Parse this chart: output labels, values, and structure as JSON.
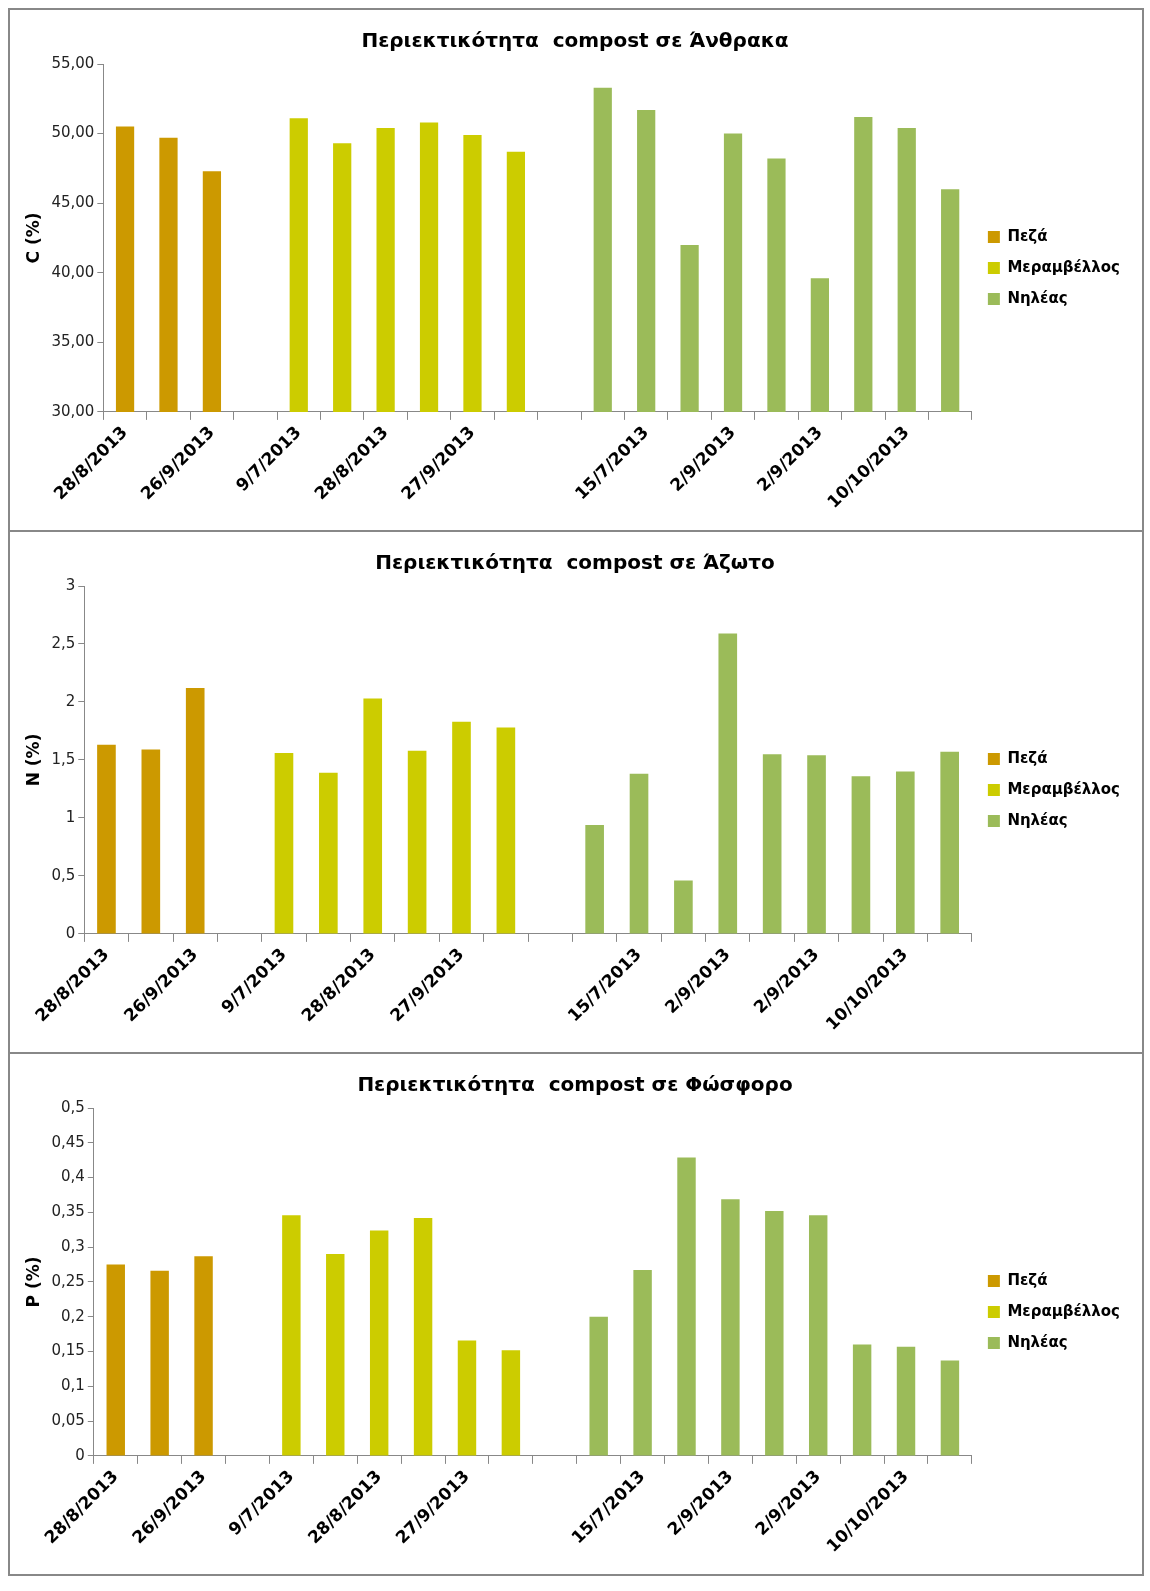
{
  "chart_data": [
    {
      "type": "bar",
      "title": "Περιεκτικότητα  compost σε Άνθρακα",
      "ylabel": "C (%)",
      "legend": "right",
      "grid": false,
      "categories": [
        "28/8/2013",
        null,
        "26/9/2013",
        null,
        "9/7/2013",
        null,
        "28/8/2013",
        null,
        "27/9/2013",
        null,
        null,
        null,
        "15/7/2013",
        null,
        "2/9/2013",
        null,
        "2/9/2013",
        null,
        "10/10/2013",
        null
      ],
      "ylim": [
        30,
        55
      ],
      "yticks": [
        {
          "value": 30,
          "label": "30,00"
        },
        {
          "value": 35,
          "label": "35,00"
        },
        {
          "value": 40,
          "label": "40,00"
        },
        {
          "value": 45,
          "label": "45,00"
        },
        {
          "value": 50,
          "label": "50,00"
        },
        {
          "value": 55,
          "label": "55,00"
        }
      ],
      "series": [
        {
          "name": "Πεζά",
          "color": "#cc9900",
          "values": [
            50.5,
            49.7,
            47.3,
            null,
            null,
            null,
            null,
            null,
            null,
            null,
            null,
            null,
            null,
            null,
            null,
            null,
            null,
            null,
            null,
            null
          ]
        },
        {
          "name": "Μεραμβέλλος",
          "color": "#cccc00",
          "values": [
            null,
            null,
            null,
            null,
            51.1,
            49.3,
            50.4,
            50.8,
            49.9,
            48.7,
            null,
            null,
            null,
            null,
            null,
            null,
            null,
            null,
            null,
            null
          ]
        },
        {
          "name": "Νηλέας",
          "color": "#9bbb59",
          "values": [
            null,
            null,
            null,
            null,
            null,
            null,
            null,
            null,
            null,
            null,
            null,
            53.3,
            51.7,
            42.0,
            50.0,
            48.2,
            39.6,
            51.2,
            50.4,
            46.0
          ]
        }
      ]
    },
    {
      "type": "bar",
      "title": "Περιεκτικότητα  compost σε Άζωτο",
      "ylabel": "N (%)",
      "legend": "right",
      "grid": false,
      "categories": [
        "28/8/2013",
        null,
        "26/9/2013",
        null,
        "9/7/2013",
        null,
        "28/8/2013",
        null,
        "27/9/2013",
        null,
        null,
        null,
        "15/7/2013",
        null,
        "2/9/2013",
        null,
        "2/9/2013",
        null,
        "10/10/2013",
        null
      ],
      "ylim": [
        0,
        3
      ],
      "yticks": [
        0,
        {
          "value": 0.5,
          "label": "0,5"
        },
        1,
        {
          "value": 1.5,
          "label": "1,5"
        },
        2,
        {
          "value": 2.5,
          "label": "2,5"
        },
        3
      ],
      "series": [
        {
          "name": "Πεζά",
          "color": "#cc9900",
          "values": [
            1.63,
            1.59,
            2.12,
            null,
            null,
            null,
            null,
            null,
            null,
            null,
            null,
            null,
            null,
            null,
            null,
            null,
            null,
            null,
            null,
            null
          ]
        },
        {
          "name": "Μεραμβέλλος",
          "color": "#cccc00",
          "values": [
            null,
            null,
            null,
            null,
            1.56,
            1.39,
            2.03,
            1.58,
            1.83,
            1.78,
            null,
            null,
            null,
            null,
            null,
            null,
            null,
            null,
            null,
            null
          ]
        },
        {
          "name": "Νηλέας",
          "color": "#9bbb59",
          "values": [
            null,
            null,
            null,
            null,
            null,
            null,
            null,
            null,
            null,
            null,
            null,
            0.94,
            1.38,
            0.46,
            2.59,
            1.55,
            1.54,
            1.36,
            1.4,
            1.57
          ]
        }
      ]
    },
    {
      "type": "bar",
      "title": "Περιεκτικότητα  compost σε Φώσφορο",
      "ylabel": "P (%)",
      "legend": "right",
      "grid": false,
      "categories": [
        "28/8/2013",
        null,
        "26/9/2013",
        null,
        "9/7/2013",
        null,
        "28/8/2013",
        null,
        "27/9/2013",
        null,
        null,
        null,
        "15/7/2013",
        null,
        "2/9/2013",
        null,
        "2/9/2013",
        null,
        "10/10/2013",
        null
      ],
      "ylim": [
        0,
        0.5
      ],
      "yticks": [
        0,
        {
          "value": 0.05,
          "label": "0,05"
        },
        {
          "value": 0.1,
          "label": "0,1"
        },
        {
          "value": 0.15,
          "label": "0,15"
        },
        {
          "value": 0.2,
          "label": "0,2"
        },
        {
          "value": 0.25,
          "label": "0,25"
        },
        {
          "value": 0.3,
          "label": "0,3"
        },
        {
          "value": 0.35,
          "label": "0,35"
        },
        {
          "value": 0.4,
          "label": "0,4"
        },
        {
          "value": 0.45,
          "label": "0,45"
        },
        {
          "value": 0.5,
          "label": "0,5"
        }
      ],
      "series": [
        {
          "name": "Πεζά",
          "color": "#cc9900",
          "values": [
            0.275,
            0.266,
            0.287,
            null,
            null,
            null,
            null,
            null,
            null,
            null,
            null,
            null,
            null,
            null,
            null,
            null,
            null,
            null,
            null,
            null
          ]
        },
        {
          "name": "Μεραμβέλλος",
          "color": "#cccc00",
          "values": [
            null,
            null,
            null,
            null,
            0.346,
            0.29,
            0.324,
            0.342,
            0.166,
            0.152,
            null,
            null,
            null,
            null,
            null,
            null,
            null,
            null,
            null,
            null
          ]
        },
        {
          "name": "Νηλέας",
          "color": "#9bbb59",
          "values": [
            null,
            null,
            null,
            null,
            null,
            null,
            null,
            null,
            null,
            null,
            null,
            0.2,
            0.267,
            0.429,
            0.369,
            0.352,
            0.346,
            0.16,
            0.157,
            0.137
          ]
        }
      ]
    }
  ]
}
